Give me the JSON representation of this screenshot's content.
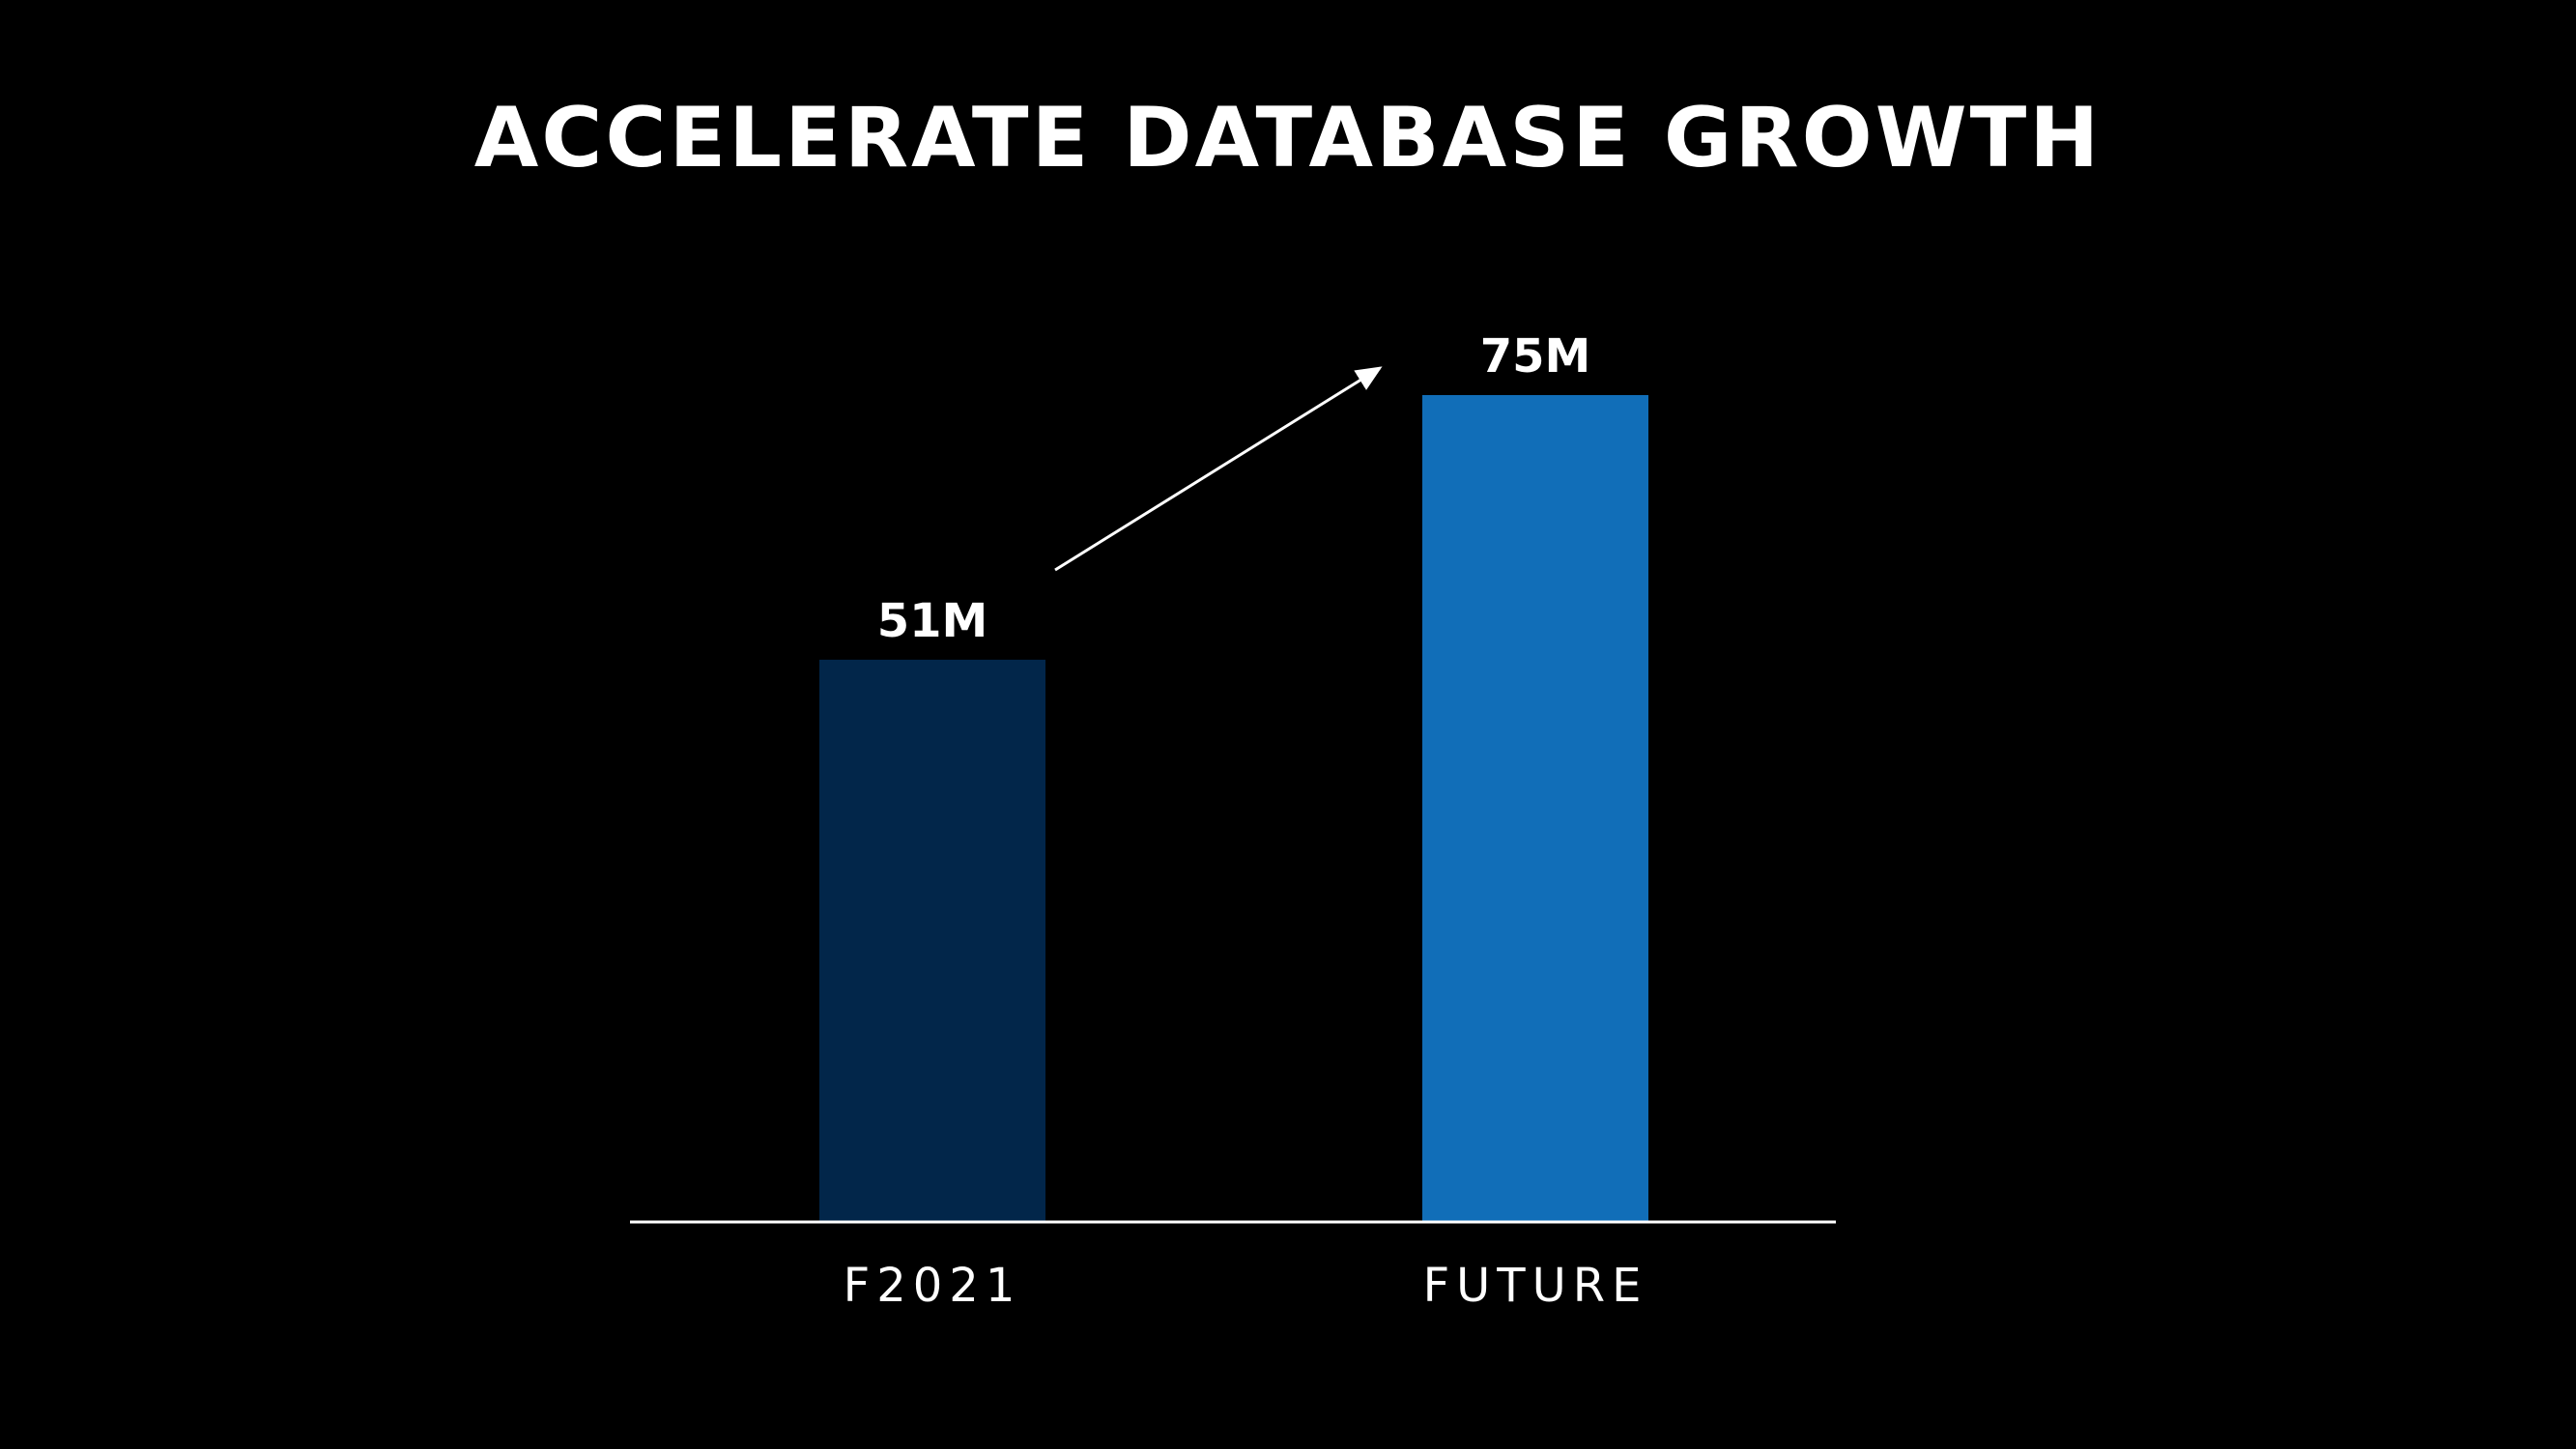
{
  "chart_data": {
    "type": "bar",
    "title": "ACCELERATE DATABASE GROWTH",
    "categories": [
      "F2021",
      "FUTURE"
    ],
    "values": [
      51,
      75
    ],
    "value_labels": [
      "51M",
      "75M"
    ],
    "unit": "M",
    "colors": [
      "#02264a",
      "#116eb8"
    ],
    "annotation": "arrow from F2021 to FUTURE indicating growth",
    "ylim": [
      0,
      75
    ],
    "grid": false,
    "legend": "none",
    "axis_color": "#ffffff"
  }
}
